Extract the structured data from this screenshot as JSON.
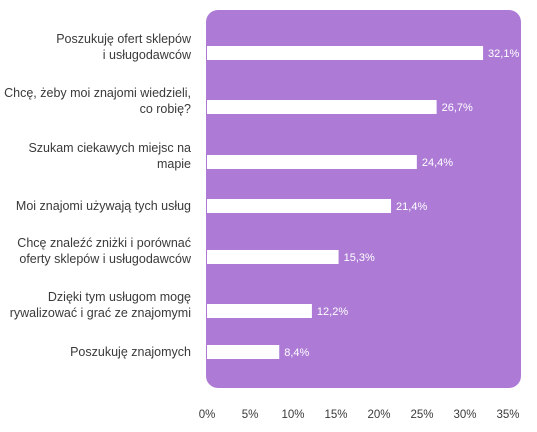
{
  "colors": {
    "panel": "#ad7bd6",
    "bar": "#ffffff",
    "value_text": "#ffffff",
    "label_text": "#3a3a3a"
  },
  "chart_data": {
    "type": "bar",
    "orientation": "horizontal",
    "title": "",
    "xlabel": "",
    "ylabel": "",
    "xlim": [
      0,
      35
    ],
    "grid": false,
    "legend": "none",
    "categories": [
      [
        "Poszukuję ofert sklepów",
        "i usługodawców"
      ],
      [
        "Chcę, żeby moi znajomi wiedzieli,",
        "co robię?"
      ],
      [
        "Szukam ciekawych miejsc na",
        "mapie"
      ],
      [
        "Moi znajomi używają tych usług"
      ],
      [
        "Chcę znaleźć zniżki i porównać",
        "oferty sklepów i usługodawców"
      ],
      [
        "Dzięki tym usługom mogę",
        "rywalizować i grać ze znajomymi"
      ],
      [
        "Poszukuję znajomych"
      ]
    ],
    "values": [
      32.1,
      26.7,
      24.4,
      21.4,
      15.3,
      12.2,
      8.4
    ],
    "value_labels": [
      "32,1%",
      "26,7%",
      "24,4%",
      "21,4%",
      "15,3%",
      "12,2%",
      "8,4%"
    ],
    "ticks": [
      0,
      5,
      10,
      15,
      20,
      25,
      30,
      35
    ],
    "tick_labels": [
      "0%",
      "5%",
      "10%",
      "15%",
      "20%",
      "25%",
      "30%",
      "35%"
    ]
  }
}
